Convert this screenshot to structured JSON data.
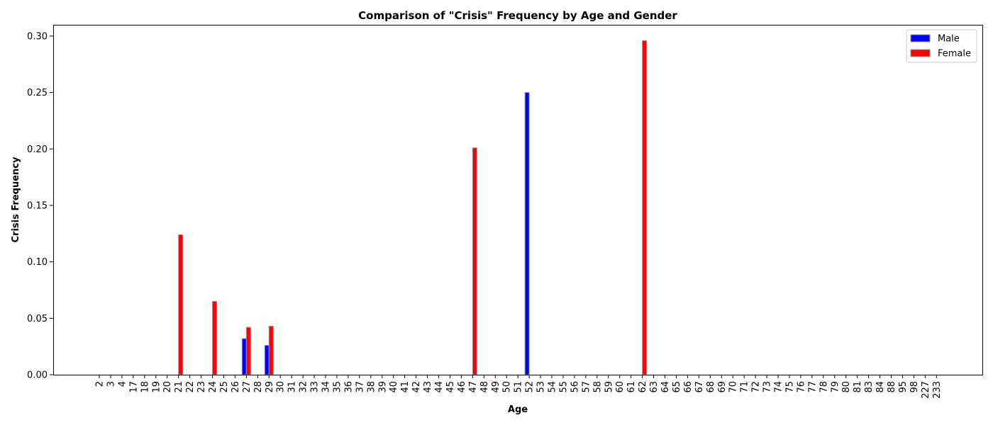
{
  "chart_data": {
    "type": "bar",
    "title": "Comparison of \"Crisis\" Frequency by Age and Gender",
    "xlabel": "Age",
    "ylabel": "Crisis Frequency",
    "ylim": [
      0,
      0.31
    ],
    "yticks": [
      "0.00",
      "0.05",
      "0.10",
      "0.15",
      "0.20",
      "0.25",
      "0.30"
    ],
    "grid": false,
    "legend_position": "top-right",
    "categories": [
      "2",
      "3",
      "4",
      "17",
      "18",
      "19",
      "20",
      "21",
      "22",
      "23",
      "24",
      "25",
      "26",
      "27",
      "28",
      "29",
      "30",
      "31",
      "32",
      "33",
      "34",
      "35",
      "36",
      "37",
      "38",
      "39",
      "40",
      "41",
      "42",
      "43",
      "44",
      "45",
      "46",
      "47",
      "48",
      "49",
      "50",
      "51",
      "52",
      "53",
      "54",
      "55",
      "56",
      "57",
      "58",
      "59",
      "60",
      "61",
      "62",
      "63",
      "64",
      "65",
      "66",
      "67",
      "68",
      "69",
      "70",
      "71",
      "72",
      "73",
      "74",
      "75",
      "76",
      "77",
      "78",
      "79",
      "80",
      "81",
      "83",
      "84",
      "88",
      "95",
      "98",
      "227",
      "233"
    ],
    "series": [
      {
        "name": "Male",
        "color": "#0000ff",
        "values": [
          0,
          0,
          0,
          0,
          0,
          0,
          0,
          0,
          0,
          0,
          0,
          0,
          0,
          0.032,
          0,
          0.026,
          0,
          0,
          0,
          0,
          0,
          0,
          0,
          0,
          0,
          0,
          0,
          0,
          0,
          0,
          0,
          0,
          0,
          0,
          0,
          0,
          0,
          0,
          0.25,
          0,
          0,
          0,
          0,
          0,
          0,
          0,
          0,
          0,
          0,
          0,
          0,
          0,
          0,
          0,
          0,
          0,
          0,
          0,
          0,
          0,
          0,
          0,
          0,
          0,
          0,
          0,
          0,
          0,
          0,
          0,
          0,
          0,
          0,
          0,
          0
        ]
      },
      {
        "name": "Female",
        "color": "#ff0000",
        "values": [
          0,
          0,
          0,
          0,
          0,
          0,
          0,
          0.124,
          0,
          0,
          0.065,
          0,
          0,
          0.042,
          0,
          0.043,
          0,
          0,
          0,
          0,
          0,
          0,
          0,
          0,
          0,
          0,
          0,
          0,
          0,
          0,
          0,
          0,
          0,
          0.201,
          0,
          0,
          0,
          0,
          0,
          0,
          0,
          0,
          0,
          0,
          0,
          0,
          0,
          0,
          0.296,
          0,
          0,
          0,
          0,
          0,
          0,
          0,
          0,
          0,
          0,
          0,
          0,
          0,
          0,
          0,
          0,
          0,
          0,
          0,
          0,
          0,
          0,
          0,
          0,
          0,
          0
        ]
      }
    ]
  }
}
